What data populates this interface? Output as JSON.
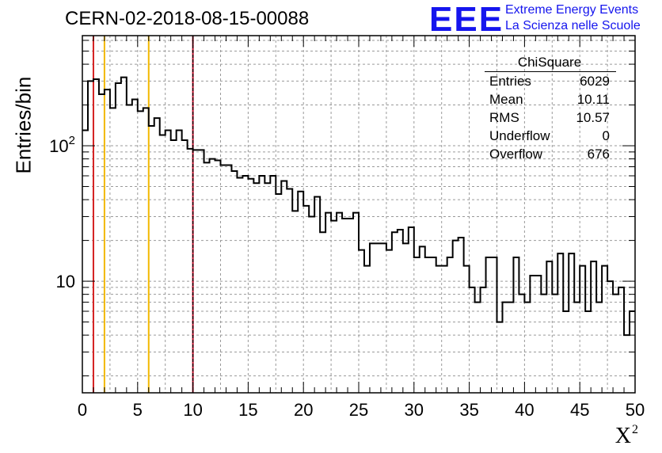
{
  "title": "CERN-02-2018-08-15-00088",
  "logo": {
    "mark": "EEE",
    "line1": "Extreme Energy Events",
    "line2": "La Scienza nelle Scuole",
    "color": "#1515ee"
  },
  "stats": {
    "name": "ChiSquare",
    "rows": [
      {
        "label": "Entries",
        "value": "6029"
      },
      {
        "label": "Mean",
        "value": "10.11"
      },
      {
        "label": "RMS",
        "value": "10.57"
      },
      {
        "label": "Underflow",
        "value": "0"
      },
      {
        "label": "Overflow",
        "value": "676"
      }
    ]
  },
  "chart_data": {
    "type": "histogram",
    "title": "CERN-02-2018-08-15-00088",
    "xlabel": "X",
    "xlabel_sup": "2",
    "ylabel": "Entries/bin",
    "xlim": [
      0,
      50
    ],
    "ylim": [
      1.5,
      650
    ],
    "yscale": "log",
    "grid": true,
    "bin_width": 0.5,
    "x_ticks": [
      "0",
      "5",
      "10",
      "15",
      "20",
      "25",
      "30",
      "35",
      "40",
      "45",
      "50"
    ],
    "y_ticks": [
      {
        "value": 10,
        "label": "10"
      },
      {
        "value": 100,
        "label": "10",
        "sup": "2"
      }
    ],
    "values": [
      130,
      300,
      310,
      240,
      260,
      190,
      290,
      320,
      200,
      220,
      180,
      190,
      140,
      160,
      120,
      130,
      110,
      130,
      110,
      95,
      93,
      93,
      75,
      80,
      78,
      72,
      72,
      65,
      58,
      60,
      57,
      53,
      60,
      53,
      60,
      44,
      55,
      48,
      33,
      46,
      36,
      30,
      42,
      23,
      32,
      28,
      32,
      29,
      29,
      32,
      17,
      13,
      19,
      19,
      19,
      17,
      23,
      24,
      19,
      25,
      15,
      18,
      15,
      15,
      13,
      13,
      15,
      20,
      21,
      13,
      9,
      7,
      9,
      15,
      15,
      5,
      7,
      7,
      15,
      8,
      7,
      11,
      11,
      8,
      14,
      8,
      16,
      6,
      16,
      7,
      13,
      6,
      14,
      7,
      13,
      10,
      8,
      9,
      4,
      6
    ],
    "markers": [
      {
        "x": 1,
        "color": "#d42020",
        "style": "solid"
      },
      {
        "x": 2,
        "color": "#f2b800",
        "style": "solid"
      },
      {
        "x": 6,
        "color": "#f2b800",
        "style": "solid"
      },
      {
        "x": 10,
        "color": "#c8102e",
        "style": "dashed"
      }
    ],
    "line_color": "#000000"
  }
}
